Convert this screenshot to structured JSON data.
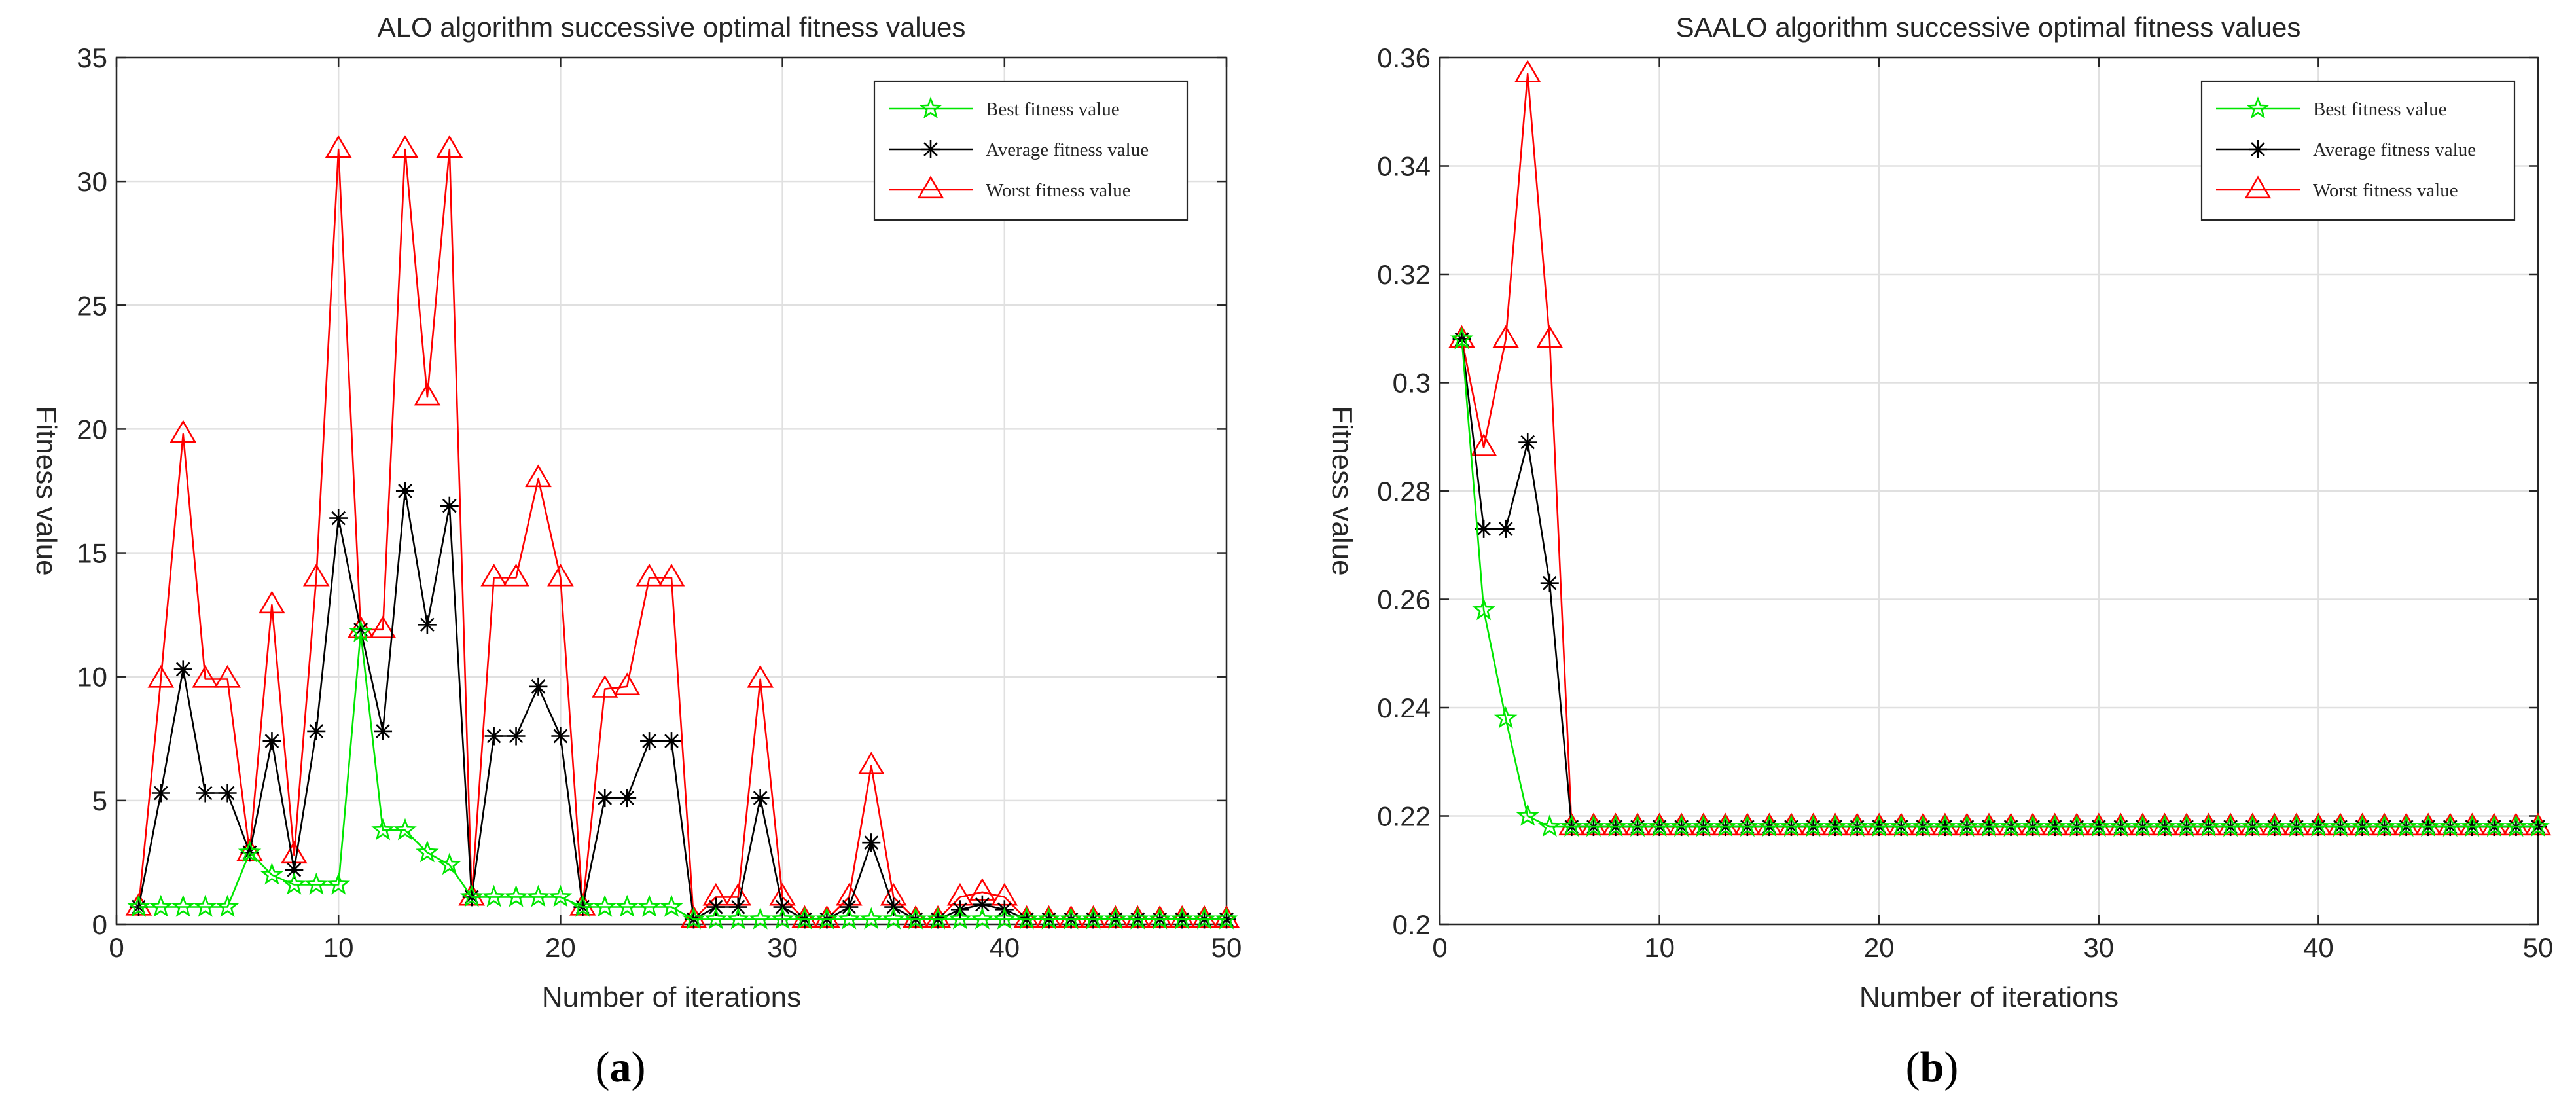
{
  "colors": {
    "best": "#00e600",
    "average": "#000000",
    "worst": "#ff0000"
  },
  "panels": [
    {
      "caption_open": "(",
      "caption_letter": "a",
      "caption_close": ")",
      "chart_data": {
        "type": "line",
        "title": "ALO algorithm successive optimal fitness values",
        "xlabel": "Number of iterations",
        "ylabel": "Fitness value",
        "xlim": [
          0,
          50
        ],
        "ylim": [
          0,
          35
        ],
        "xticks": [
          0,
          10,
          20,
          30,
          40,
          50
        ],
        "yticks": [
          0,
          5,
          10,
          15,
          20,
          25,
          30,
          35
        ],
        "ytick_labels": [
          "0",
          "5",
          "10",
          "15",
          "20",
          "25",
          "30",
          "35"
        ],
        "grid": true,
        "legend_position": "top-right",
        "x": [
          1,
          2,
          3,
          4,
          5,
          6,
          7,
          8,
          9,
          10,
          11,
          12,
          13,
          14,
          15,
          16,
          17,
          18,
          19,
          20,
          21,
          22,
          23,
          24,
          25,
          26,
          27,
          28,
          29,
          30,
          31,
          32,
          33,
          34,
          35,
          36,
          37,
          38,
          39,
          40,
          41,
          42,
          43,
          44,
          45,
          46,
          47,
          48,
          49,
          50
        ],
        "series": [
          {
            "name": "Best fitness value",
            "marker": "star",
            "color_key": "best",
            "values": [
              0.7,
              0.7,
              0.7,
              0.7,
              0.7,
              2.9,
              2.0,
              1.6,
              1.6,
              1.6,
              11.8,
              3.8,
              3.8,
              2.9,
              2.4,
              1.1,
              1.1,
              1.1,
              1.1,
              1.1,
              0.7,
              0.7,
              0.7,
              0.7,
              0.7,
              0.2,
              0.2,
              0.2,
              0.2,
              0.2,
              0.2,
              0.2,
              0.2,
              0.2,
              0.2,
              0.2,
              0.2,
              0.2,
              0.2,
              0.2,
              0.2,
              0.2,
              0.2,
              0.2,
              0.2,
              0.2,
              0.2,
              0.2,
              0.2,
              0.2
            ]
          },
          {
            "name": "Average fitness value",
            "marker": "asterisk",
            "color_key": "average",
            "values": [
              0.7,
              5.3,
              10.3,
              5.3,
              5.3,
              2.9,
              7.4,
              2.2,
              7.8,
              16.4,
              11.9,
              7.8,
              17.5,
              12.1,
              16.9,
              1.1,
              7.6,
              7.6,
              9.6,
              7.6,
              0.7,
              5.1,
              5.1,
              7.4,
              7.4,
              0.2,
              0.7,
              0.7,
              5.1,
              0.7,
              0.2,
              0.2,
              0.7,
              3.3,
              0.7,
              0.2,
              0.2,
              0.6,
              0.8,
              0.6,
              0.2,
              0.2,
              0.2,
              0.2,
              0.2,
              0.2,
              0.2,
              0.2,
              0.2,
              0.2
            ]
          },
          {
            "name": "Worst fitness value",
            "marker": "triangle",
            "color_key": "worst",
            "values": [
              0.7,
              9.9,
              19.8,
              9.9,
              9.9,
              2.9,
              12.9,
              2.8,
              14.0,
              31.3,
              11.9,
              11.9,
              31.3,
              21.3,
              31.3,
              1.1,
              14.0,
              14.0,
              18.0,
              14.0,
              0.7,
              9.5,
              9.6,
              14.0,
              14.0,
              0.2,
              1.1,
              1.1,
              9.9,
              1.1,
              0.2,
              0.2,
              1.1,
              6.4,
              1.1,
              0.2,
              0.2,
              1.1,
              1.3,
              1.1,
              0.2,
              0.2,
              0.2,
              0.2,
              0.2,
              0.2,
              0.2,
              0.2,
              0.2,
              0.2
            ]
          }
        ]
      }
    },
    {
      "caption_open": "(",
      "caption_letter": "b",
      "caption_close": ")",
      "chart_data": {
        "type": "line",
        "title": "SAALO algorithm successive optimal fitness values",
        "xlabel": "Number of iterations",
        "ylabel": "Fitness value",
        "xlim": [
          0,
          50
        ],
        "ylim": [
          0.2,
          0.36
        ],
        "xticks": [
          0,
          10,
          20,
          30,
          40,
          50
        ],
        "yticks": [
          0.2,
          0.22,
          0.24,
          0.26,
          0.28,
          0.3,
          0.32,
          0.34,
          0.36
        ],
        "ytick_labels": [
          "0.2",
          "0.22",
          "0.24",
          "0.26",
          "0.28",
          "0.3",
          "0.32",
          "0.34",
          "0.36"
        ],
        "grid": true,
        "legend_position": "top-right",
        "x": [
          1,
          2,
          3,
          4,
          5,
          6,
          7,
          8,
          9,
          10,
          11,
          12,
          13,
          14,
          15,
          16,
          17,
          18,
          19,
          20,
          21,
          22,
          23,
          24,
          25,
          26,
          27,
          28,
          29,
          30,
          31,
          32,
          33,
          34,
          35,
          36,
          37,
          38,
          39,
          40,
          41,
          42,
          43,
          44,
          45,
          46,
          47,
          48,
          49,
          50
        ],
        "series": [
          {
            "name": "Best fitness value",
            "marker": "star",
            "color_key": "best",
            "values": [
              0.308,
              0.258,
              0.238,
              0.22,
              0.218,
              0.218,
              0.218,
              0.218,
              0.218,
              0.218,
              0.218,
              0.218,
              0.218,
              0.218,
              0.218,
              0.218,
              0.218,
              0.218,
              0.218,
              0.218,
              0.218,
              0.218,
              0.218,
              0.218,
              0.218,
              0.218,
              0.218,
              0.218,
              0.218,
              0.218,
              0.218,
              0.218,
              0.218,
              0.218,
              0.218,
              0.218,
              0.218,
              0.218,
              0.218,
              0.218,
              0.218,
              0.218,
              0.218,
              0.218,
              0.218,
              0.218,
              0.218,
              0.218,
              0.218,
              0.218
            ]
          },
          {
            "name": "Average fitness value",
            "marker": "asterisk",
            "color_key": "average",
            "values": [
              0.308,
              0.273,
              0.273,
              0.289,
              0.263,
              0.218,
              0.218,
              0.218,
              0.218,
              0.218,
              0.218,
              0.218,
              0.218,
              0.218,
              0.218,
              0.218,
              0.218,
              0.218,
              0.218,
              0.218,
              0.218,
              0.218,
              0.218,
              0.218,
              0.218,
              0.218,
              0.218,
              0.218,
              0.218,
              0.218,
              0.218,
              0.218,
              0.218,
              0.218,
              0.218,
              0.218,
              0.218,
              0.218,
              0.218,
              0.218,
              0.218,
              0.218,
              0.218,
              0.218,
              0.218,
              0.218,
              0.218,
              0.218,
              0.218,
              0.218
            ]
          },
          {
            "name": "Worst fitness value",
            "marker": "triangle",
            "color_key": "worst",
            "values": [
              0.308,
              0.288,
              0.308,
              0.357,
              0.308,
              0.218,
              0.218,
              0.218,
              0.218,
              0.218,
              0.218,
              0.218,
              0.218,
              0.218,
              0.218,
              0.218,
              0.218,
              0.218,
              0.218,
              0.218,
              0.218,
              0.218,
              0.218,
              0.218,
              0.218,
              0.218,
              0.218,
              0.218,
              0.218,
              0.218,
              0.218,
              0.218,
              0.218,
              0.218,
              0.218,
              0.218,
              0.218,
              0.218,
              0.218,
              0.218,
              0.218,
              0.218,
              0.218,
              0.218,
              0.218,
              0.218,
              0.218,
              0.218,
              0.218,
              0.218
            ]
          }
        ]
      }
    }
  ]
}
